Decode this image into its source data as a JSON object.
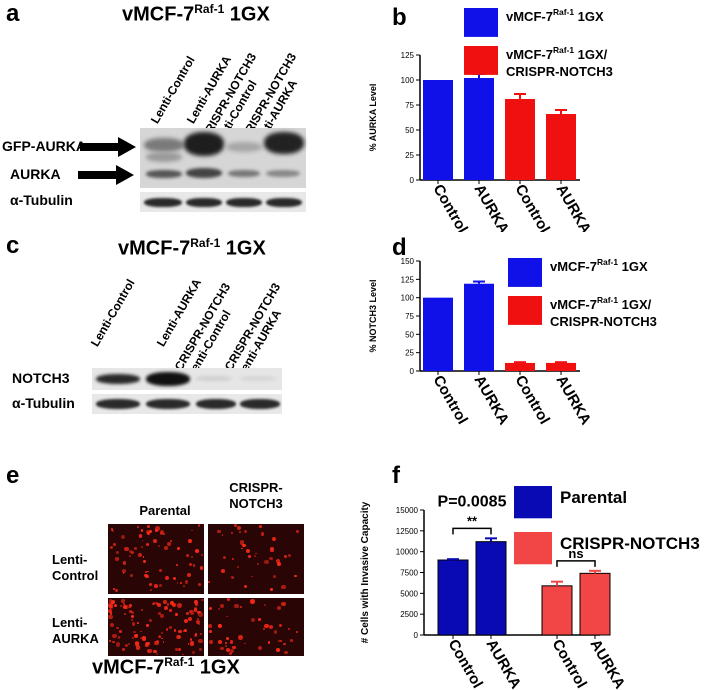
{
  "panel_labels": {
    "a": "a",
    "b": "b",
    "c": "c",
    "d": "d",
    "e": "e",
    "f": "f"
  },
  "title": {
    "main": "vMCF-7",
    "sup": "Raf-1",
    "suffix": " 1GX"
  },
  "blot_a": {
    "lanes": [
      "Lenti-Control",
      "Lenti-AURKA",
      "CRISPR-NOTCH3 Lenti-Control",
      "CRISPR-NOTCH3 Lenti-AURKA"
    ],
    "lane_lines": [
      [
        "Lenti-Control"
      ],
      [
        "Lenti-AURKA"
      ],
      [
        "CRISPR-NOTCH3",
        "Lenti-Control"
      ],
      [
        "CRISPR-NOTCH3",
        "Lenti-AURKA"
      ]
    ],
    "rows": [
      "GFP-AURKA",
      "AURKA",
      "α-Tubulin"
    ]
  },
  "blot_c": {
    "lane_lines": [
      [
        "Lenti-Control"
      ],
      [
        "Lenti-AURKA"
      ],
      [
        "CRISPR-NOTCH3",
        "Lenti-Control"
      ],
      [
        "CRISPR-NOTCH3",
        "Lenti-AURKA"
      ]
    ],
    "rows": [
      "NOTCH3",
      "α-Tubulin"
    ]
  },
  "micro_e": {
    "columns": [
      "Parental",
      "CRISPR-\nNOTCH3"
    ],
    "column_lines": [
      [
        "Parental"
      ],
      [
        "CRISPR-",
        "NOTCH3"
      ]
    ],
    "rows": [
      [
        "Lenti-",
        "Control"
      ],
      [
        "Lenti-",
        "AURKA"
      ]
    ]
  },
  "colors": {
    "blue": "#1010e8",
    "red": "#f01010",
    "dark_blue": "#0a0ab4",
    "light_red": "#f24646"
  },
  "chart_data": [
    {
      "type": "bar",
      "panel": "b",
      "ylabel": "% AURKA  Level",
      "categories": [
        "Control",
        "AURKA",
        "Control",
        "AURKA"
      ],
      "values": [
        100,
        102,
        81,
        66
      ],
      "errors": [
        0,
        4,
        5,
        4
      ],
      "bar_series": [
        0,
        0,
        1,
        1
      ],
      "yticks": [
        0,
        25,
        50,
        75,
        100,
        125
      ],
      "ylim": [
        0,
        125
      ],
      "legend_position": "top-right",
      "series": [
        {
          "name_lines": [
            [
              "vMCF-7",
              "Raf-1",
              " 1GX"
            ]
          ],
          "color": "#1010e8"
        },
        {
          "name_lines": [
            [
              "vMCF-7",
              "Raf-1",
              " 1GX/"
            ],
            [
              "CRISPR-NOTCH3",
              "",
              ""
            ]
          ],
          "color": "#f01010"
        }
      ]
    },
    {
      "type": "bar",
      "panel": "d",
      "ylabel": "% NOTCH3  Level",
      "categories": [
        "Control",
        "AURKA",
        "Control",
        "AURKA"
      ],
      "values": [
        100,
        119,
        11,
        11
      ],
      "errors": [
        0,
        3,
        1,
        1
      ],
      "bar_series": [
        0,
        0,
        1,
        1
      ],
      "yticks": [
        0,
        25,
        50,
        75,
        100,
        125,
        150
      ],
      "ylim": [
        0,
        150
      ],
      "legend_position": "top-right",
      "series": [
        {
          "name_lines": [
            [
              "vMCF-7",
              "Raf-1",
              " 1GX"
            ]
          ],
          "color": "#1010e8"
        },
        {
          "name_lines": [
            [
              "vMCF-7",
              "Raf-1",
              " 1GX/"
            ],
            [
              "CRISPR-NOTCH3",
              "",
              ""
            ]
          ],
          "color": "#f01010"
        }
      ]
    },
    {
      "type": "bar",
      "panel": "f",
      "ylabel": "# Cells with Invasive Capacity",
      "categories": [
        "Control",
        "AURKA",
        "Control",
        "AURKA"
      ],
      "values": [
        9000,
        11200,
        5900,
        7400
      ],
      "errors": [
        100,
        400,
        500,
        300
      ],
      "bar_series": [
        0,
        0,
        1,
        1
      ],
      "yticks": [
        0,
        2500,
        5000,
        7500,
        10000,
        12500,
        15000
      ],
      "ylim": [
        0,
        15000
      ],
      "legend_position": "top-right",
      "annotations": [
        {
          "text": "P=0.0085",
          "between": [
            0,
            1
          ],
          "stars": "**"
        },
        {
          "text": "",
          "between": [
            2,
            3
          ],
          "stars": "ns"
        }
      ],
      "series": [
        {
          "name_lines": [
            [
              "Parental",
              "",
              ""
            ]
          ],
          "color": "#0a0ab4"
        },
        {
          "name_lines": [
            [
              "CRISPR-NOTCH3",
              "",
              ""
            ]
          ],
          "color": "#f24646"
        }
      ]
    }
  ]
}
